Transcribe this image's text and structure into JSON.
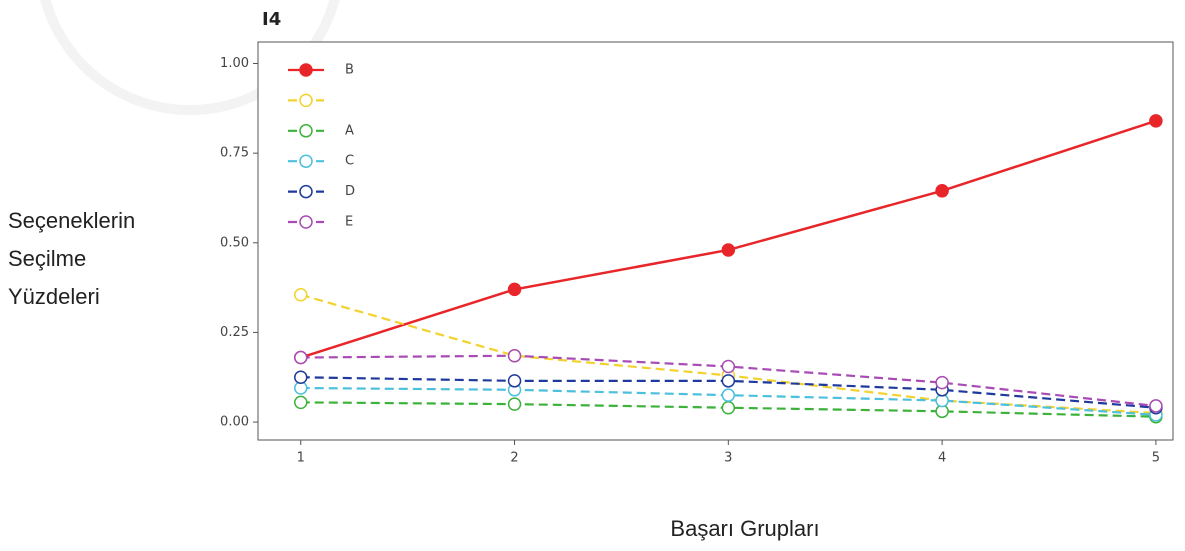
{
  "chart_data": {
    "type": "line",
    "title": "I4",
    "ylabel": [
      "Seçeneklerin",
      "Seçilme",
      "Yüzdeleri"
    ],
    "xlabel": "Başarı Grupları",
    "x": [
      1,
      2,
      3,
      4,
      5
    ],
    "xlim": [
      0.8,
      5.08
    ],
    "xticks": [
      1,
      2,
      3,
      4,
      5
    ],
    "ylim": [
      -0.05,
      1.06
    ],
    "yticks": [
      {
        "value": 0,
        "label": "0.00"
      },
      0.25,
      {
        "value": 0.5,
        "label": "0.50"
      },
      0.75,
      {
        "value": 1,
        "label": "1.00"
      }
    ],
    "legend": "upper left",
    "series": [
      {
        "name": "B",
        "color": "#e8262a",
        "linestyle": "solid",
        "marker": "filled",
        "values": [
          0.18,
          0.37,
          0.48,
          0.645,
          0.84
        ]
      },
      {
        "color": "#f2d22e",
        "linestyle": "dashed",
        "marker": "open",
        "values": [
          0.355,
          0.185,
          0.13,
          0.06,
          0.025
        ]
      },
      {
        "name": "A",
        "color": "#3db23a",
        "linestyle": "dashed",
        "marker": "open",
        "values": [
          0.055,
          0.05,
          0.04,
          0.03,
          0.015
        ]
      },
      {
        "name": "C",
        "color": "#4cc0dc",
        "linestyle": "dashed",
        "marker": "open",
        "values": [
          0.095,
          0.09,
          0.075,
          0.06,
          0.02
        ]
      },
      {
        "name": "D",
        "color": "#1f3a9c",
        "linestyle": "dashed",
        "marker": "open",
        "values": [
          0.125,
          0.115,
          0.115,
          0.09,
          0.04
        ]
      },
      {
        "name": "E",
        "color": "#a84bb5",
        "linestyle": "dashed",
        "marker": "open",
        "values": [
          0.18,
          0.185,
          0.155,
          0.11,
          0.045
        ]
      }
    ]
  }
}
